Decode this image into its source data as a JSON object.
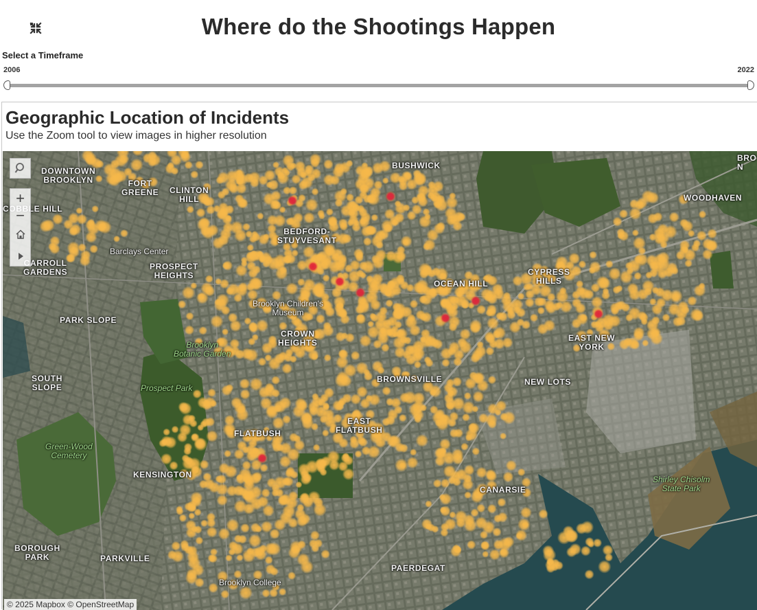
{
  "header": {
    "title": "Where do the Shootings Happen",
    "collapse_icon": "collapse-icon"
  },
  "timeframe": {
    "label": "Select a Timeframe",
    "min": "2006",
    "max": "2022",
    "selected_start": 2006,
    "selected_end": 2022
  },
  "map_panel": {
    "title": "Geographic Location of Incidents",
    "subtitle": "Use the Zoom tool to view images in higher resolution",
    "attribution": "© 2025 Mapbox  © OpenStreetMap",
    "colors": {
      "density_low": "#f6b84a",
      "density_high": "#e0263a",
      "satellite_base": "#4f5546"
    },
    "toolbar": {
      "search_icon": "search-icon",
      "zoom_in": "+",
      "zoom_out": "−",
      "home_icon": "home-icon",
      "expand_icon": "play-icon"
    },
    "labels": {
      "downtown_brooklyn": "DOWNTOWN\nBROOKLYN",
      "fort_greene": "FORT\nGREENE",
      "clinton_hill": "CLINTON\nHILL",
      "bushwick": "BUSHWICK",
      "woodhaven": "WOODHAVEN",
      "cobble_hill": "COBBLE HILL",
      "bedford_stuyvesant": "BEDFORD-\nSTUYVESANT",
      "barclays_center": "Barclays Center",
      "carroll_gardens": "CARROLL\nGARDENS",
      "prospect_heights": "PROSPECT\nHEIGHTS",
      "cypress_hills": "CYPRESS\nHILLS",
      "ocean_hill": "OCEAN HILL",
      "brooklyn_childrens_museum": "Brooklyn Children's\nMuseum",
      "park_slope": "PARK SLOPE",
      "crown_heights": "CROWN\nHEIGHTS",
      "east_new_york": "EAST NEW\nYORK",
      "brooklyn_botanic_garden": "Brooklyn\nBotanic Garden",
      "south_slope": "SOUTH\nSLOPE",
      "brownsville": "BROWNSVILLE",
      "new_lots": "NEW LOTS",
      "prospect_park": "Prospect Park",
      "east_flatbush": "EAST\nFLATBUSH",
      "flatbush": "FLATBUSH",
      "green_wood_cemetery": "Green-Wood\nCemetery",
      "kensington": "KENSINGTON",
      "canarsie": "CANARSIE",
      "shirley_chisholm_state_park": "Shirley Chisolm\nState Park",
      "borough_park": "BOROUGH\nPARK",
      "parkville": "PARKVILLE",
      "paerdegat": "PAERDEGAT",
      "brooklyn_college": "Brooklyn College",
      "brooklyn_navy": "BRO\nN"
    }
  }
}
